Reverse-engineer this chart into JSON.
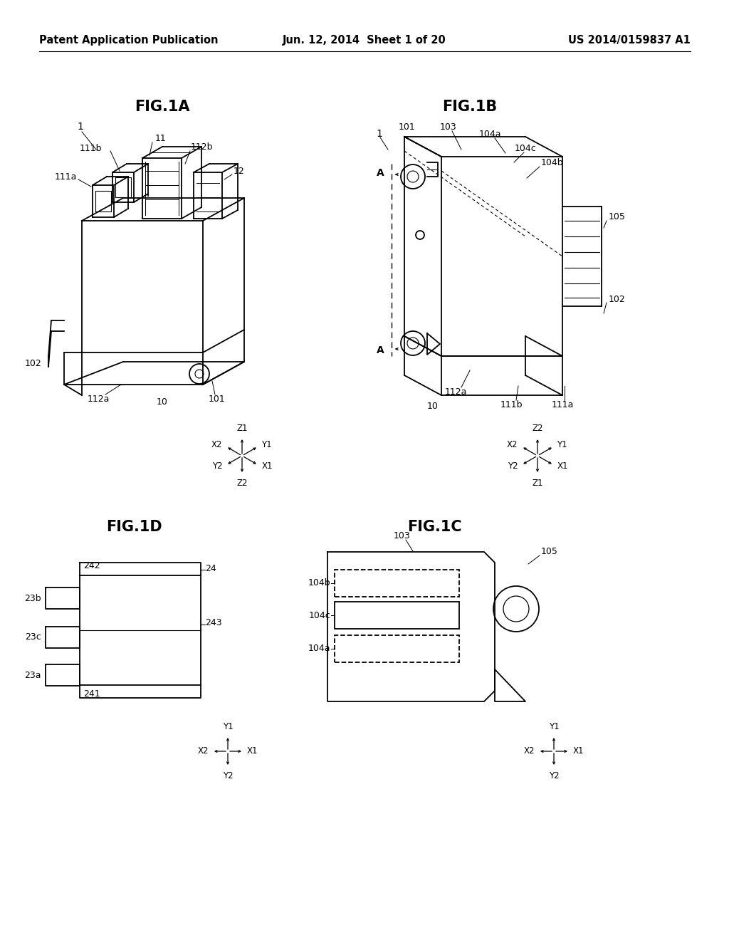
{
  "bg_color": "#ffffff",
  "header_left": "Patent Application Publication",
  "header_center": "Jun. 12, 2014  Sheet 1 of 20",
  "header_right": "US 2014/0159837 A1",
  "fig1a_title": "FIG.1A",
  "fig1b_title": "FIG.1B",
  "fig1c_title": "FIG.1C",
  "fig1d_title": "FIG.1D",
  "line_color": "#000000",
  "font_size_header": 10.5,
  "font_size_title": 15,
  "font_size_label": 9
}
